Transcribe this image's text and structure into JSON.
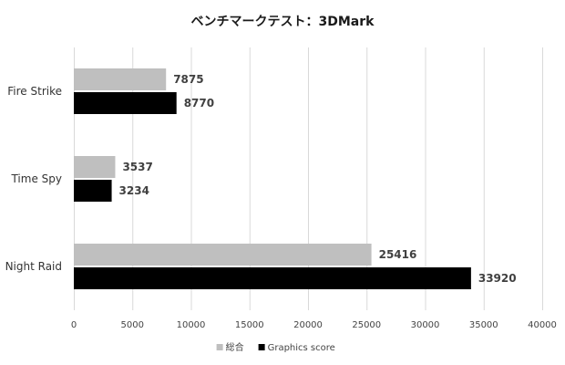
{
  "chart_data": {
    "type": "bar",
    "orientation": "horizontal",
    "title": "ベンチマークテスト：3DMark",
    "categories": [
      "Fire Strike",
      "Time Spy",
      "Night Raid"
    ],
    "series": [
      {
        "name": "総合",
        "values": [
          7875,
          3537,
          25416
        ],
        "color": "#bfbfbf"
      },
      {
        "name": "Graphics score",
        "values": [
          8770,
          3234,
          33920
        ],
        "color": "#000000"
      }
    ],
    "xlim": [
      0,
      40000
    ],
    "xticks": [
      0,
      5000,
      10000,
      15000,
      20000,
      25000,
      30000,
      35000,
      40000
    ],
    "xlabel": "",
    "ylabel": "",
    "grid": "vertical",
    "legend_position": "bottom",
    "data_labels": true
  }
}
